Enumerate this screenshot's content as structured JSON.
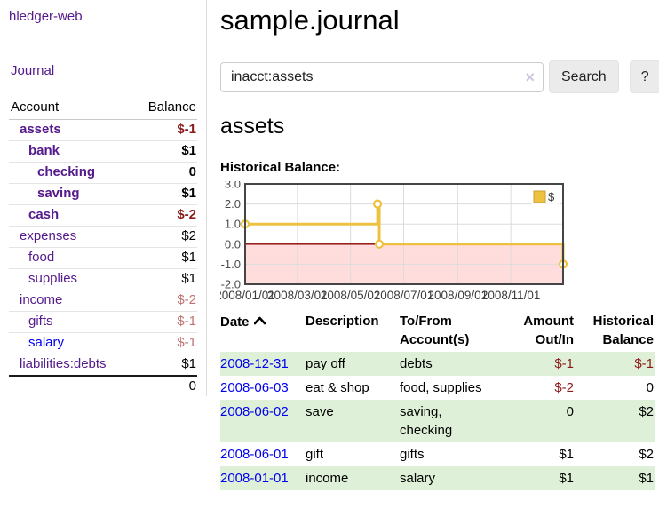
{
  "colors": {
    "link_purple": "#551a8b",
    "link_blue": "#0000ee",
    "negative_strong": "#8b1a1a",
    "negative_soft": "#bd7272",
    "row_stripe_green": "#dff0d8",
    "series_gold": "#edc240"
  },
  "icons": {
    "sort_ascending": "chevron-up",
    "clear_search": "×",
    "help": "?"
  },
  "sidebar": {
    "brand": "hledger-web",
    "journal_link": "Journal",
    "account_col": "Account",
    "balance_col": "Balance",
    "accounts": [
      {
        "name": "assets",
        "balance": "$-1",
        "depth": 1,
        "bold": true,
        "neg": "strong",
        "blue": false
      },
      {
        "name": "bank",
        "balance": "$1",
        "depth": 2,
        "bold": true,
        "neg": "none",
        "blue": false
      },
      {
        "name": "checking",
        "balance": "0",
        "depth": 3,
        "bold": true,
        "neg": "none",
        "blue": false
      },
      {
        "name": "saving",
        "balance": "$1",
        "depth": 3,
        "bold": true,
        "neg": "none",
        "blue": false
      },
      {
        "name": "cash",
        "balance": "$-2",
        "depth": 2,
        "bold": true,
        "neg": "strong",
        "blue": false
      },
      {
        "name": "expenses",
        "balance": "$2",
        "depth": 1,
        "bold": false,
        "neg": "none",
        "blue": false
      },
      {
        "name": "food",
        "balance": "$1",
        "depth": 2,
        "bold": false,
        "neg": "none",
        "blue": false
      },
      {
        "name": "supplies",
        "balance": "$1",
        "depth": 2,
        "bold": false,
        "neg": "none",
        "blue": false
      },
      {
        "name": "income",
        "balance": "$-2",
        "depth": 1,
        "bold": false,
        "neg": "soft",
        "blue": false
      },
      {
        "name": "gifts",
        "balance": "$-1",
        "depth": 2,
        "bold": false,
        "neg": "soft",
        "blue": false
      },
      {
        "name": "salary",
        "balance": "$-1",
        "depth": 2,
        "bold": false,
        "neg": "soft",
        "blue": true
      },
      {
        "name": "liabilities:debts",
        "balance": "$1",
        "depth": 1,
        "bold": false,
        "neg": "none",
        "blue": false
      }
    ],
    "total": "0"
  },
  "main": {
    "title": "sample.journal",
    "search": {
      "value": "inacct:assets",
      "clear_icon": "×",
      "search_button": "Search",
      "help_button": "?"
    },
    "account_heading": "assets",
    "section_heading": "Historical Balance:"
  },
  "chart_data": {
    "type": "line",
    "title": "Historical Balance",
    "step": true,
    "grid": true,
    "x_range": [
      "2008-01-01",
      "2008-12-31"
    ],
    "ylim": [
      -2.0,
      3.0
    ],
    "yticks": [
      3.0,
      2.0,
      1.0,
      0.0,
      -1.0,
      -2.0
    ],
    "xtick_labels": [
      "2008/01/01",
      "2008/03/01",
      "2008/05/01",
      "2008/07/01",
      "2008/09/01",
      "2008/11/01"
    ],
    "legend": {
      "label": "$",
      "position": "top-right"
    },
    "series": [
      {
        "name": "$",
        "color": "#edc240",
        "points": [
          [
            "2008-01-01",
            1
          ],
          [
            "2008-06-01",
            2
          ],
          [
            "2008-06-03",
            0
          ],
          [
            "2008-12-31",
            -1
          ]
        ]
      }
    ],
    "negative_region": {
      "below": 0,
      "color": "#ffdddd",
      "zero_line_color": "#8b0000"
    }
  },
  "register": {
    "headers": {
      "date": "Date",
      "description": "Description",
      "accounts": "To/From Account(s)",
      "amount": "Amount Out/In",
      "balance": "Historical Balance"
    },
    "rows": [
      {
        "date": "2008-12-31",
        "description": "pay off",
        "accounts": "debts",
        "amount": "$-1",
        "balance": "$-1",
        "amount_neg": true,
        "balance_neg": true
      },
      {
        "date": "2008-06-03",
        "description": "eat & shop",
        "accounts": "food, supplies",
        "amount": "$-2",
        "balance": "0",
        "amount_neg": true,
        "balance_neg": false
      },
      {
        "date": "2008-06-02",
        "description": "save",
        "accounts": "saving, checking",
        "amount": "0",
        "balance": "$2",
        "amount_neg": false,
        "balance_neg": false
      },
      {
        "date": "2008-06-01",
        "description": "gift",
        "accounts": "gifts",
        "amount": "$1",
        "balance": "$2",
        "amount_neg": false,
        "balance_neg": false
      },
      {
        "date": "2008-01-01",
        "description": "income",
        "accounts": "salary",
        "amount": "$1",
        "balance": "$1",
        "amount_neg": false,
        "balance_neg": false
      }
    ]
  }
}
